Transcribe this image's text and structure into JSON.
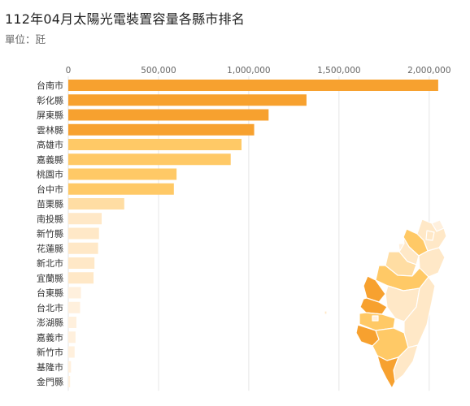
{
  "title": "112年04月太陽光電裝置容量各縣市排名",
  "subtitle": "單位：瓩",
  "chart_data": {
    "type": "bar",
    "orientation": "horizontal",
    "title": "112年04月太陽光電裝置容量各縣市排名",
    "subtitle": "單位：瓩",
    "xlabel": "",
    "ylabel": "",
    "xlim": [
      0,
      2100000
    ],
    "ticks": [
      0,
      500000,
      1000000,
      1500000,
      2000000
    ],
    "tick_labels": [
      "0",
      "500,000",
      "1,000,000",
      "1,500,000",
      "2,000,000"
    ],
    "grid": true,
    "categories": [
      "台南市",
      "彰化縣",
      "屏東縣",
      "雲林縣",
      "高雄市",
      "嘉義縣",
      "桃園市",
      "台中市",
      "苗栗縣",
      "南投縣",
      "新竹縣",
      "花蓮縣",
      "新北市",
      "宜蘭縣",
      "台東縣",
      "台北市",
      "澎湖縣",
      "嘉義市",
      "新竹市",
      "基隆市",
      "金門縣"
    ],
    "values": [
      2050000,
      1320000,
      1110000,
      1030000,
      960000,
      900000,
      600000,
      585000,
      310000,
      185000,
      170000,
      165000,
      145000,
      140000,
      70000,
      65000,
      45000,
      40000,
      35000,
      15000,
      10000
    ],
    "colors": {
      "top": "#f7a12f",
      "high": "#ffc966",
      "mid": "#ffdda3",
      "low": "#ffe8c7",
      "lowest": "#fff0dd"
    }
  }
}
